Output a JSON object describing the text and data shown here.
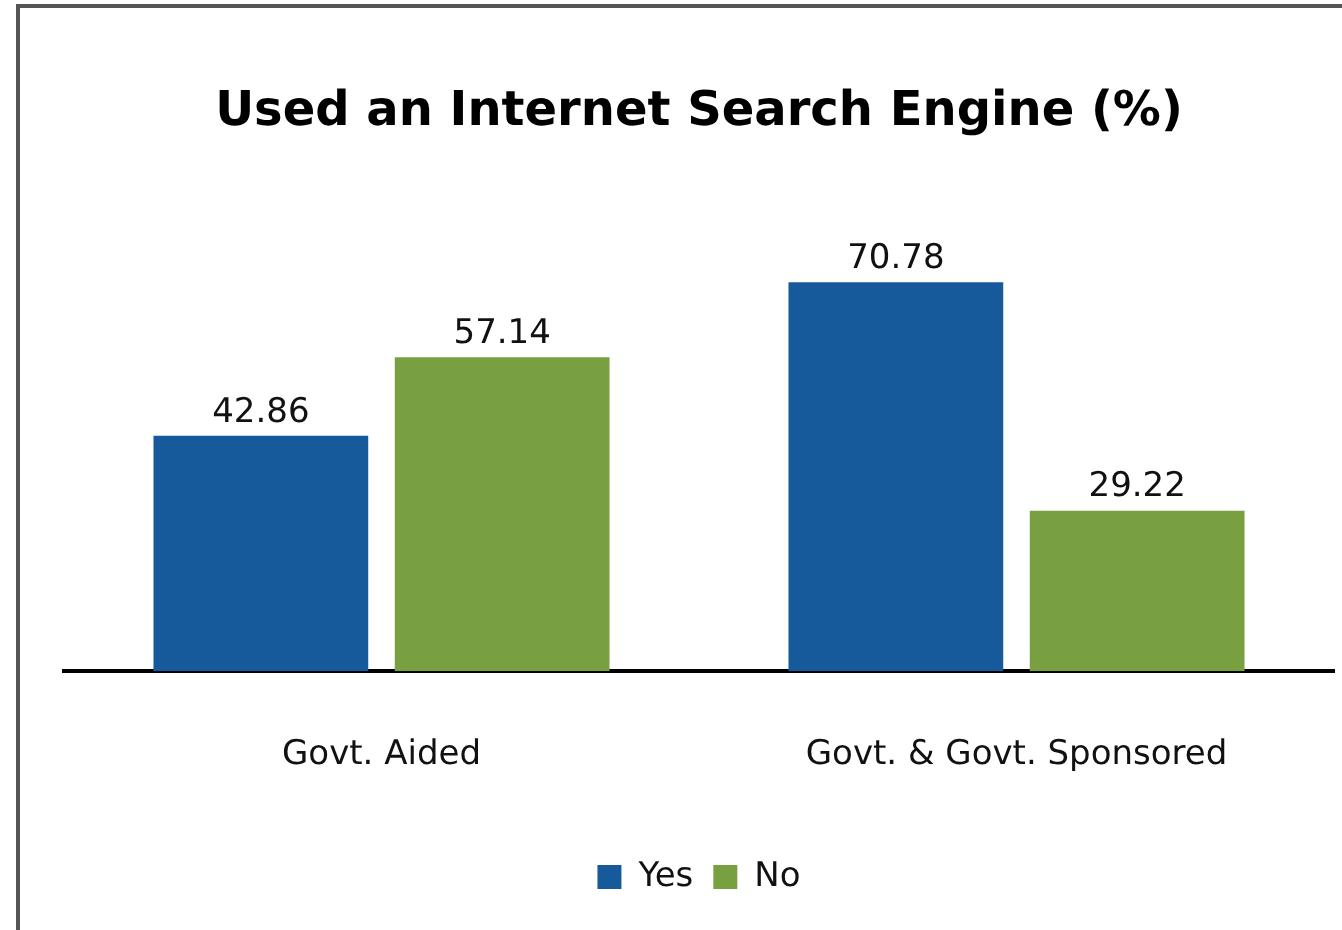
{
  "chart_data": {
    "type": "bar",
    "title": "Used an Internet Search Engine (%)",
    "categories": [
      "Govt. Aided",
      "Govt. & Govt. Sponsored"
    ],
    "series": [
      {
        "name": "Yes",
        "color": "#175a9c",
        "values": [
          42.86,
          70.78
        ]
      },
      {
        "name": "No",
        "color": "#78a040",
        "values": [
          57.14,
          29.22
        ]
      }
    ],
    "data_labels": true,
    "legend": "bottom",
    "grid": false
  }
}
